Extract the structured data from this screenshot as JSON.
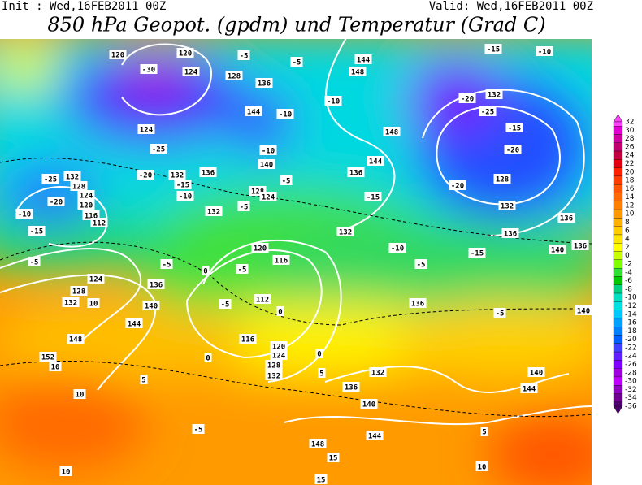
{
  "header": {
    "init": "Init : Wed,16FEB2011 00Z",
    "valid": "Valid: Wed,16FEB2011 00Z",
    "title": "850 hPa Geopot. (gpdm) und Temperatur (Grad C)"
  },
  "map": {
    "contour_labels": [
      "120",
      "120",
      "-30",
      "124",
      "-5",
      "-5",
      "128",
      "136",
      "144",
      "148",
      "-10",
      "-15",
      "-10",
      "132",
      "-20",
      "-25",
      "-15",
      "-20",
      "128",
      "-20",
      "132",
      "136",
      "136",
      "140",
      "136",
      "-15",
      "-5",
      "140",
      "148",
      "144",
      "136",
      "-15",
      "132",
      "-10",
      "-5",
      "136",
      "124",
      "-25",
      "-20",
      "132",
      "-15",
      "-10",
      "144",
      "-10",
      "140",
      "-5",
      "128",
      "124",
      "132",
      "-5",
      "-10",
      "136",
      "132",
      "128",
      "124",
      "120",
      "116",
      "112",
      "-25",
      "-20",
      "-15",
      "-10",
      "-5",
      "-5",
      "0",
      "-5",
      "116",
      "120",
      "112",
      "-5",
      "0",
      "124",
      "128",
      "132",
      "136",
      "140",
      "144",
      "148",
      "152",
      "10",
      "10",
      "10",
      "5",
      "116",
      "120",
      "124",
      "128",
      "132",
      "132",
      "136",
      "140",
      "144",
      "148",
      "140",
      "144",
      "10",
      "5",
      "10",
      "15",
      "15",
      "0",
      "5",
      "-5",
      "0"
    ]
  },
  "colorbar": {
    "ticks": [
      32,
      30,
      28,
      26,
      24,
      22,
      20,
      18,
      16,
      14,
      12,
      10,
      8,
      6,
      4,
      2,
      0,
      -2,
      -4,
      -6,
      -8,
      -10,
      -12,
      -14,
      -16,
      -18,
      -20,
      -22,
      -24,
      -26,
      -28,
      -30,
      -32,
      -34,
      -36
    ],
    "colors": [
      "#ff40ff",
      "#e000d0",
      "#d000a0",
      "#c00070",
      "#c00040",
      "#e00010",
      "#ff2000",
      "#ff3c00",
      "#ff5500",
      "#ff6a00",
      "#ff8000",
      "#ff9900",
      "#ffb000",
      "#ffcc00",
      "#ffe600",
      "#ffff00",
      "#c8ff00",
      "#80ff00",
      "#30e030",
      "#00c800",
      "#00d080",
      "#00e0c0",
      "#00e0e0",
      "#00c8ff",
      "#00a0ff",
      "#0080ff",
      "#0060ff",
      "#4040ff",
      "#6020ff",
      "#8000ff",
      "#a000e0",
      "#c000ff",
      "#9000c0",
      "#700090",
      "#500070"
    ]
  }
}
